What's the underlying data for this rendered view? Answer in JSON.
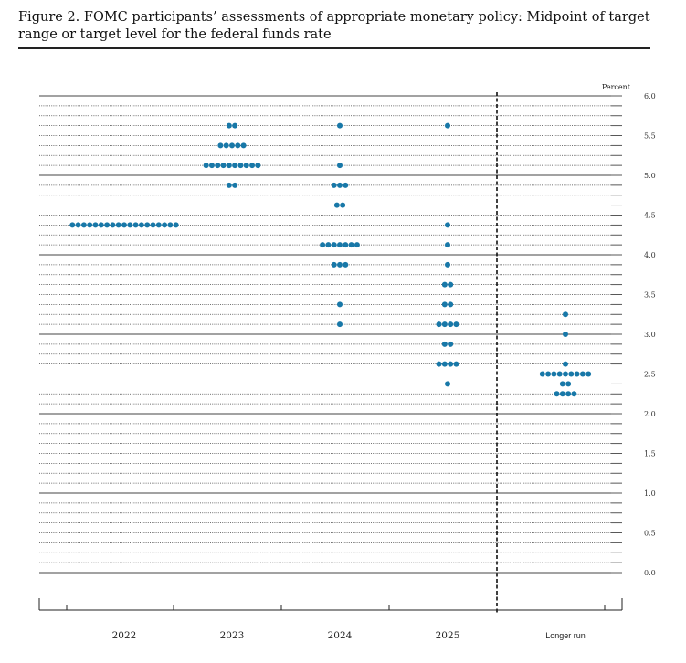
{
  "figure": {
    "title": "Figure 2.  FOMC participants’ assessments of appropriate monetary policy:  Midpoint of target range or target level for the federal funds rate"
  },
  "colors": {
    "dot": "#1878a8",
    "text": "#111111",
    "grid": "#444444"
  },
  "chart_data": {
    "type": "scatter",
    "subtype": "dot-plot",
    "title": "",
    "xlabel": "",
    "ylabel": "Percent",
    "ylim": [
      0,
      6.0
    ],
    "yticks": [
      6.0,
      5.5,
      5.0,
      4.5,
      4.0,
      3.5,
      3.0,
      2.5,
      2.0,
      1.5,
      1.0,
      0.5,
      0.0
    ],
    "ytick_labels": [
      "6.0",
      "5.5",
      "5.0",
      "4.5",
      "4.0",
      "3.5",
      "3.0",
      "2.5",
      "2.0",
      "1.5",
      "1.0",
      "0.5",
      "0.0"
    ],
    "categories": [
      "2022",
      "2023",
      "2024",
      "2025",
      "Longer run"
    ],
    "grid": true,
    "grid_step": 0.125,
    "separator_before": "Longer run",
    "series": [
      {
        "category": "2022",
        "points": [
          {
            "y": 4.375,
            "count": 19
          }
        ]
      },
      {
        "category": "2023",
        "points": [
          {
            "y": 5.625,
            "count": 2
          },
          {
            "y": 5.375,
            "count": 5
          },
          {
            "y": 5.125,
            "count": 10
          },
          {
            "y": 4.875,
            "count": 2
          }
        ]
      },
      {
        "category": "2024",
        "points": [
          {
            "y": 5.625,
            "count": 1
          },
          {
            "y": 5.125,
            "count": 1
          },
          {
            "y": 4.875,
            "count": 3
          },
          {
            "y": 4.625,
            "count": 2
          },
          {
            "y": 4.125,
            "count": 7
          },
          {
            "y": 3.875,
            "count": 3
          },
          {
            "y": 3.375,
            "count": 1
          },
          {
            "y": 3.125,
            "count": 1
          }
        ]
      },
      {
        "category": "2025",
        "points": [
          {
            "y": 5.625,
            "count": 1
          },
          {
            "y": 4.375,
            "count": 1
          },
          {
            "y": 4.125,
            "count": 1
          },
          {
            "y": 3.875,
            "count": 1
          },
          {
            "y": 3.625,
            "count": 2
          },
          {
            "y": 3.375,
            "count": 2
          },
          {
            "y": 3.125,
            "count": 4
          },
          {
            "y": 2.875,
            "count": 2
          },
          {
            "y": 2.625,
            "count": 4
          },
          {
            "y": 2.375,
            "count": 1
          }
        ]
      },
      {
        "category": "Longer run",
        "points": [
          {
            "y": 3.25,
            "count": 1
          },
          {
            "y": 3.0,
            "count": 1
          },
          {
            "y": 2.625,
            "count": 1
          },
          {
            "y": 2.5,
            "count": 9
          },
          {
            "y": 2.375,
            "count": 2
          },
          {
            "y": 2.25,
            "count": 4
          }
        ]
      }
    ]
  }
}
